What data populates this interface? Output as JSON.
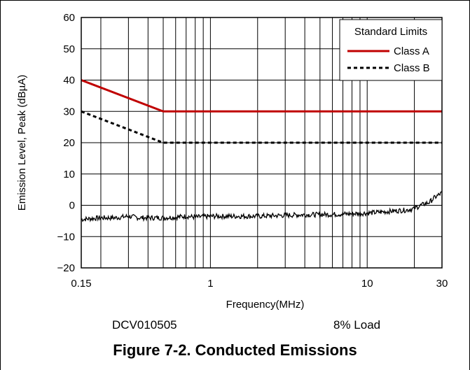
{
  "chart_data": {
    "type": "line",
    "xlabel": "Frequency(MHz)",
    "ylabel": "Emission Level, Peak (dBµA)",
    "x_scale": "log",
    "xlim": [
      0.15,
      30
    ],
    "ylim": [
      -20,
      60
    ],
    "x_ticks": [
      0.15,
      1,
      10,
      30
    ],
    "x_tick_labels": [
      "0.15",
      "1",
      "10",
      "30"
    ],
    "y_ticks": [
      -20,
      -10,
      0,
      10,
      20,
      30,
      40,
      50,
      60
    ],
    "y_tick_labels": [
      "−20",
      "−10",
      "0",
      "10",
      "20",
      "30",
      "40",
      "50",
      "60"
    ],
    "grid": true,
    "legend": {
      "title": "Standard Limits",
      "position": "top-right",
      "entries": [
        "Class A",
        "Class B"
      ]
    },
    "series": [
      {
        "name": "Class A",
        "color": "#c00000",
        "style": "solid",
        "x": [
          0.15,
          0.5,
          30
        ],
        "y": [
          40,
          30,
          30
        ]
      },
      {
        "name": "Class B",
        "color": "#000000",
        "style": "dashed",
        "x": [
          0.15,
          0.5,
          30
        ],
        "y": [
          30,
          20,
          20
        ]
      },
      {
        "name": "",
        "color": "#000000",
        "style": "solid",
        "x": [
          0.15,
          0.2,
          0.25,
          0.3,
          0.35,
          0.4,
          0.5,
          0.6,
          0.7,
          0.8,
          1,
          1.5,
          2,
          3,
          4,
          5,
          7,
          10,
          12,
          15,
          18,
          20,
          22,
          25,
          27,
          30
        ],
        "y": [
          -4.5,
          -4,
          -4,
          -3.5,
          -4,
          -4,
          -4,
          -3.8,
          -3.5,
          -3.8,
          -3.5,
          -3.5,
          -3.5,
          -3.2,
          -3,
          -3,
          -2.8,
          -2.5,
          -2.2,
          -1.8,
          -1.5,
          -1,
          0,
          1,
          2.5,
          4
        ]
      }
    ]
  },
  "footer": {
    "left": "DCV010505",
    "right": "8% Load"
  },
  "caption": "Figure 7-2. Conducted Emissions"
}
